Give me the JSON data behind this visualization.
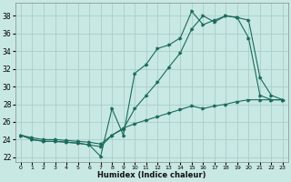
{
  "xlabel": "Humidex (Indice chaleur)",
  "bg_color": "#c8e8e4",
  "grid_color": "#a8ceca",
  "line_color": "#1a6b5a",
  "xlim": [
    -0.5,
    23.5
  ],
  "ylim": [
    21.5,
    39.5
  ],
  "xticks": [
    0,
    1,
    2,
    3,
    4,
    5,
    6,
    7,
    8,
    9,
    10,
    11,
    12,
    13,
    14,
    15,
    16,
    17,
    18,
    19,
    20,
    21,
    22,
    23
  ],
  "yticks": [
    22,
    24,
    26,
    28,
    30,
    32,
    34,
    36,
    38
  ],
  "line1_x": [
    0,
    1,
    2,
    3,
    4,
    5,
    6,
    7,
    8,
    9,
    10,
    11,
    12,
    13,
    14,
    15,
    16,
    17,
    18,
    19,
    20,
    21,
    22,
    23
  ],
  "line1_y": [
    24.5,
    24.0,
    23.8,
    23.8,
    23.7,
    23.6,
    23.4,
    22.1,
    27.5,
    24.5,
    31.5,
    32.5,
    34.3,
    34.7,
    35.5,
    38.5,
    37.0,
    37.5,
    38.0,
    37.8,
    35.5,
    29.0,
    28.5,
    28.5
  ],
  "line2_x": [
    0,
    1,
    2,
    3,
    4,
    5,
    6,
    7,
    8,
    9,
    10,
    11,
    12,
    13,
    14,
    15,
    16,
    17,
    18,
    19,
    20,
    21,
    22,
    23
  ],
  "line2_y": [
    24.5,
    24.0,
    23.8,
    23.8,
    23.7,
    23.6,
    23.4,
    23.2,
    24.5,
    25.2,
    27.5,
    29.0,
    30.5,
    32.2,
    33.8,
    36.5,
    38.0,
    37.3,
    38.0,
    37.8,
    37.5,
    31.0,
    29.0,
    28.5
  ],
  "line3_x": [
    0,
    1,
    2,
    3,
    4,
    5,
    6,
    7,
    8,
    9,
    10,
    11,
    12,
    13,
    14,
    15,
    16,
    17,
    18,
    19,
    20,
    21,
    22,
    23
  ],
  "line3_y": [
    24.5,
    24.2,
    24.0,
    24.0,
    23.9,
    23.8,
    23.7,
    23.5,
    24.5,
    25.3,
    25.8,
    26.2,
    26.6,
    27.0,
    27.4,
    27.8,
    27.5,
    27.8,
    28.0,
    28.3,
    28.5,
    28.5,
    28.5,
    28.5
  ]
}
